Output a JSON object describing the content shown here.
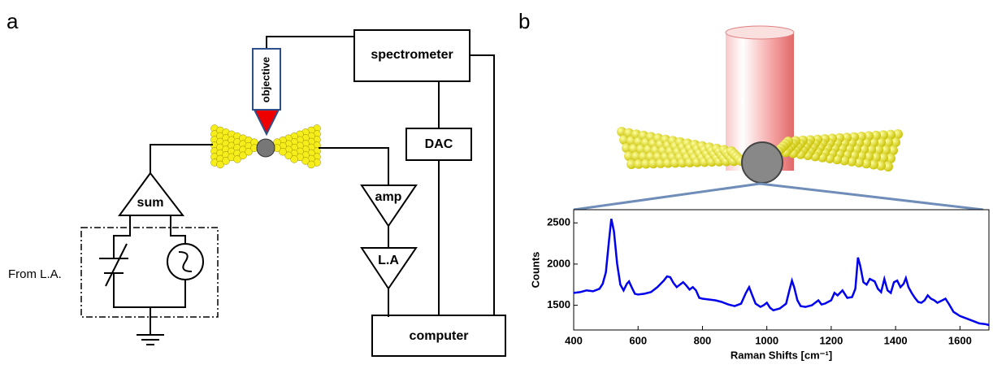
{
  "panel_a": {
    "label": "a",
    "spectrometer": "spectrometer",
    "objective": "objective",
    "dac": "DAC",
    "sum": "sum",
    "amp": "amp",
    "lock_in": "L.A",
    "computer": "computer",
    "from": "From L.A."
  },
  "panel_b": {
    "label": "b"
  },
  "chart_data": {
    "type": "line",
    "x_label": "Raman Shifts [cm⁻¹]",
    "y_label": "Counts",
    "xlim": [
      400,
      1690
    ],
    "ylim": [
      1200,
      2660
    ],
    "xticks": [
      400,
      600,
      800,
      1000,
      1200,
      1400,
      1600
    ],
    "yticks": [
      1500,
      2000,
      2500
    ],
    "color": "#0000ee",
    "x": [
      400,
      420,
      440,
      460,
      480,
      490,
      500,
      510,
      517,
      525,
      535,
      545,
      555,
      565,
      572,
      580,
      590,
      600,
      620,
      640,
      660,
      680,
      690,
      700,
      710,
      720,
      730,
      740,
      750,
      760,
      770,
      780,
      790,
      800,
      820,
      840,
      860,
      880,
      900,
      920,
      935,
      945,
      955,
      965,
      980,
      990,
      1000,
      1010,
      1020,
      1040,
      1060,
      1070,
      1078,
      1085,
      1095,
      1105,
      1120,
      1140,
      1160,
      1170,
      1180,
      1200,
      1210,
      1220,
      1235,
      1250,
      1265,
      1275,
      1283,
      1290,
      1300,
      1310,
      1320,
      1335,
      1345,
      1355,
      1365,
      1375,
      1385,
      1395,
      1405,
      1415,
      1425,
      1432,
      1440,
      1450,
      1460,
      1470,
      1480,
      1490,
      1500,
      1510,
      1520,
      1530,
      1545,
      1555,
      1565,
      1580,
      1600,
      1620,
      1640,
      1660,
      1680,
      1690
    ],
    "values": [
      1650,
      1660,
      1680,
      1670,
      1700,
      1760,
      1900,
      2300,
      2550,
      2400,
      2000,
      1750,
      1680,
      1760,
      1790,
      1720,
      1640,
      1630,
      1640,
      1660,
      1720,
      1800,
      1850,
      1840,
      1770,
      1720,
      1750,
      1780,
      1740,
      1690,
      1720,
      1680,
      1590,
      1580,
      1570,
      1560,
      1540,
      1510,
      1490,
      1520,
      1650,
      1720,
      1620,
      1520,
      1480,
      1500,
      1530,
      1470,
      1440,
      1460,
      1520,
      1680,
      1800,
      1720,
      1560,
      1490,
      1480,
      1500,
      1560,
      1510,
      1520,
      1560,
      1650,
      1620,
      1680,
      1590,
      1600,
      1700,
      2080,
      1980,
      1780,
      1750,
      1820,
      1790,
      1700,
      1660,
      1820,
      1680,
      1650,
      1780,
      1800,
      1720,
      1760,
      1830,
      1720,
      1650,
      1590,
      1540,
      1530,
      1560,
      1620,
      1580,
      1560,
      1530,
      1560,
      1580,
      1520,
      1420,
      1370,
      1340,
      1310,
      1280,
      1270,
      1260
    ]
  }
}
